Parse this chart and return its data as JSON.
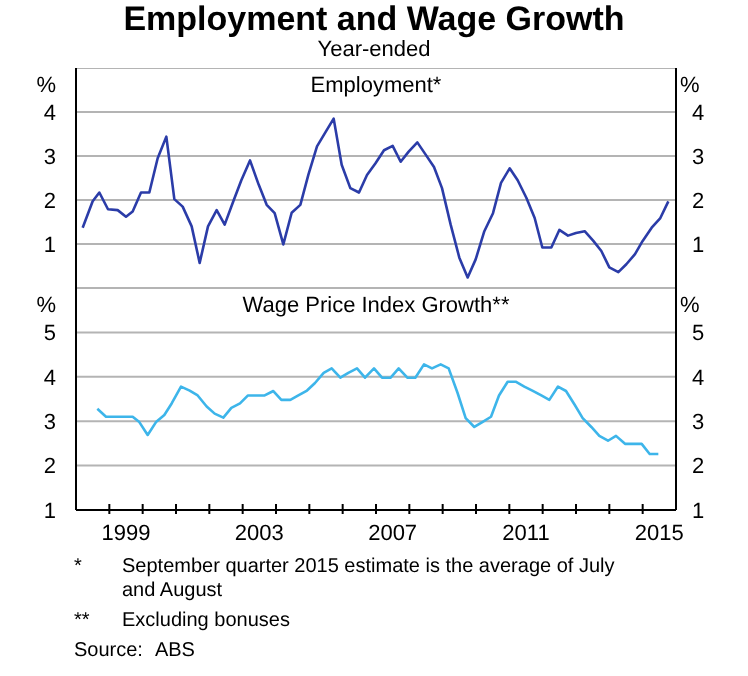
{
  "chart_data": [
    {
      "type": "line",
      "title": "Employment and Wage Growth",
      "subtitle": "Year-ended",
      "annotations": [
        "Employment*"
      ],
      "ylabel": "%",
      "y2label": "%",
      "xlim": [
        1998,
        2016
      ],
      "ylim": [
        0,
        5
      ],
      "yticks": [
        1,
        2,
        3,
        4
      ],
      "y2lim": [
        0,
        5
      ],
      "y2ticks": [
        1,
        2,
        3,
        4
      ],
      "grid": "y",
      "tick_labels": "y",
      "x": [
        1998.2,
        1998.5,
        1998.7,
        1998.96,
        1999.25,
        1999.5,
        1999.7,
        1999.95,
        2000.2,
        2000.45,
        2000.71,
        2000.95,
        2001.2,
        2001.47,
        2001.71,
        2001.96,
        2002.22,
        2002.46,
        2002.72,
        2002.96,
        2003.22,
        2003.48,
        2003.72,
        2003.96,
        2004.22,
        2004.47,
        2004.73,
        2004.97,
        2005.23,
        2005.49,
        2005.73,
        2005.97,
        2006.23,
        2006.49,
        2006.73,
        2006.98,
        2007.24,
        2007.5,
        2007.74,
        2007.98,
        2008.24,
        2008.5,
        2008.74,
        2008.98,
        2009.24,
        2009.5,
        2009.75,
        2009.99,
        2010.25,
        2010.51,
        2010.75,
        2011.01,
        2011.25,
        2011.51,
        2011.76,
        2011.99,
        2012.26,
        2012.5,
        2012.76,
        2013.0,
        2013.26,
        2013.52,
        2013.76,
        2014.0,
        2014.27,
        2014.51,
        2014.77,
        2015.0,
        2015.27,
        2015.53,
        2015.77
      ],
      "series": [
        {
          "color": "#2b3ca8",
          "values": [
            1.37,
            1.97,
            2.17,
            1.79,
            1.77,
            1.62,
            1.74,
            2.17,
            2.17,
            2.95,
            3.44,
            2.02,
            1.85,
            1.4,
            0.57,
            1.4,
            1.77,
            1.44,
            1.97,
            2.45,
            2.9,
            2.35,
            1.89,
            1.7,
            0.99,
            1.71,
            1.89,
            2.57,
            3.22,
            3.55,
            3.85,
            2.8,
            2.27,
            2.17,
            2.57,
            2.83,
            3.13,
            3.23,
            2.87,
            3.1,
            3.31,
            3.02,
            2.75,
            2.27,
            1.44,
            0.69,
            0.24,
            0.65,
            1.29,
            1.7,
            2.39,
            2.72,
            2.45,
            2.05,
            1.59,
            0.92,
            0.92,
            1.32,
            1.19,
            1.25,
            1.29,
            1.07,
            0.84,
            0.47,
            0.36,
            0.54,
            0.77,
            1.07,
            1.37,
            1.59,
            1.97
          ]
        }
      ]
    },
    {
      "type": "line",
      "title": "Wage Price Index Growth**",
      "annotations": [
        "*\tSeptember quarter 2015 estimate is the average of July and August",
        "**\tExcluding bonuses",
        "Source:\tABS"
      ],
      "ylabel": "%",
      "y2label": "%",
      "xlim": [
        1998,
        2016
      ],
      "xticks": [
        {
          "value": 1999,
          "label": null
        },
        {
          "value": 1999.5,
          "label": "1999"
        },
        {
          "value": 2000,
          "label": null
        },
        {
          "value": 2001,
          "label": null
        },
        {
          "value": 2002,
          "label": null
        },
        {
          "value": 2003,
          "label": null
        },
        {
          "value": 2003.5,
          "label": "2003"
        },
        {
          "value": 2004,
          "label": null
        },
        {
          "value": 2005,
          "label": null
        },
        {
          "value": 2006,
          "label": null
        },
        {
          "value": 2007,
          "label": null
        },
        {
          "value": 2007.5,
          "label": "2007"
        },
        {
          "value": 2008,
          "label": null
        },
        {
          "value": 2009,
          "label": null
        },
        {
          "value": 2010,
          "label": null
        },
        {
          "value": 2011,
          "label": null
        },
        {
          "value": 2011.5,
          "label": "2011"
        },
        {
          "value": 2012,
          "label": null
        },
        {
          "value": 2013,
          "label": null
        },
        {
          "value": 2014,
          "label": null
        },
        {
          "value": 2015,
          "label": null
        },
        {
          "value": 2015.5,
          "label": "2015"
        }
      ],
      "ylim": [
        1,
        6
      ],
      "yticks": [
        1,
        2,
        3,
        4,
        5
      ],
      "y2lim": [
        1,
        6
      ],
      "y2ticks": [
        1,
        2,
        3,
        4,
        5
      ],
      "grid": "y",
      "x": [
        1998.64,
        1998.9,
        1999.2,
        1999.5,
        1999.7,
        1999.9,
        2000.15,
        2000.41,
        2000.65,
        2000.87,
        2001.15,
        2001.41,
        2001.65,
        2001.92,
        2002.16,
        2002.42,
        2002.66,
        2002.92,
        2003.16,
        2003.42,
        2003.66,
        2003.92,
        2004.16,
        2004.43,
        2004.67,
        2004.93,
        2005.17,
        2005.43,
        2005.67,
        2005.93,
        2006.17,
        2006.43,
        2006.67,
        2006.94,
        2007.18,
        2007.44,
        2007.68,
        2007.94,
        2008.18,
        2008.44,
        2008.68,
        2008.94,
        2009.18,
        2009.45,
        2009.69,
        2009.95,
        2010.19,
        2010.45,
        2010.69,
        2010.95,
        2011.19,
        2011.45,
        2011.69,
        2011.96,
        2012.2,
        2012.46,
        2012.7,
        2012.96,
        2013.2,
        2013.46,
        2013.7,
        2013.96,
        2014.2,
        2014.47,
        2014.71,
        2014.97,
        2015.21,
        2015.47
      ],
      "series": [
        {
          "color": "#3db5ea",
          "values": [
            3.28,
            3.1,
            3.1,
            3.1,
            3.1,
            2.98,
            2.69,
            2.99,
            3.14,
            3.4,
            3.78,
            3.69,
            3.58,
            3.33,
            3.17,
            3.08,
            3.3,
            3.4,
            3.58,
            3.58,
            3.58,
            3.68,
            3.48,
            3.48,
            3.58,
            3.69,
            3.86,
            4.09,
            4.19,
            3.98,
            4.09,
            4.19,
            3.98,
            4.19,
            3.98,
            3.98,
            4.19,
            3.98,
            3.98,
            4.28,
            4.19,
            4.28,
            4.19,
            3.63,
            3.07,
            2.87,
            2.98,
            3.1,
            3.58,
            3.89,
            3.89,
            3.78,
            3.69,
            3.58,
            3.48,
            3.78,
            3.68,
            3.37,
            3.07,
            2.87,
            2.67,
            2.56,
            2.67,
            2.49,
            2.49,
            2.49,
            2.26,
            2.26
          ]
        }
      ]
    }
  ]
}
